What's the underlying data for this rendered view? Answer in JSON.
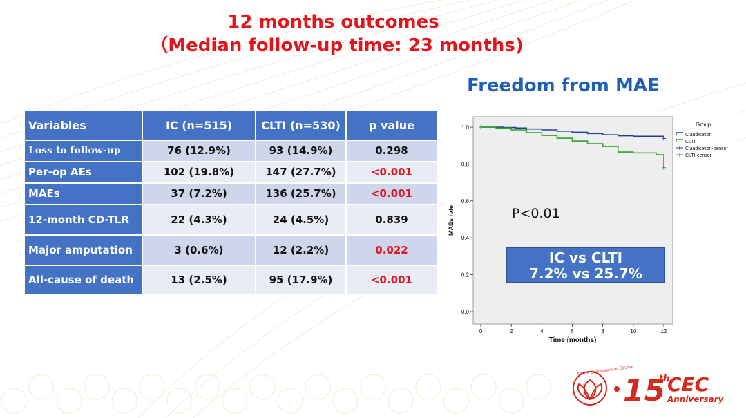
{
  "slide": {
    "title_line1": "12 months outcomes",
    "title_line2": "（Median follow-up time: 23 months)",
    "subtitle": "Freedom from MAE",
    "p_text": "P<0.01",
    "comparison_line1": "IC vs CLTI",
    "comparison_line2": "7.2% vs 25.7%",
    "colors": {
      "title_red": "#e3141c",
      "blue": "#1f5fb8",
      "table_blue": "#4472c4"
    }
  },
  "table": {
    "headers": [
      "Variables",
      "IC (n=515)",
      "CLTI (n=530)",
      "p value"
    ],
    "rows": [
      {
        "variable": "Loss to follow-up",
        "ic": "76 (12.9%)",
        "clti": "93 (14.9%)",
        "p": "0.298",
        "significant": false
      },
      {
        "variable": "Per-op AEs",
        "ic": "102 (19.8%)",
        "clti": "147 (27.7%)",
        "p": "<0.001",
        "significant": true
      },
      {
        "variable": "MAEs",
        "ic": "37 (7.2%)",
        "clti": "136 (25.7%)",
        "p": "<0.001",
        "significant": true
      },
      {
        "variable": "  12-month CD-TLR",
        "ic": "22 (4.3%)",
        "clti": "24 (4.5%)",
        "p": "0.839",
        "significant": false
      },
      {
        "variable": "  Major amputation",
        "ic": "3 (0.6%)",
        "clti": "12 (2.2%)",
        "p": "0.022",
        "significant": true
      },
      {
        "variable": "  All-cause of death",
        "ic": "13 (2.5%)",
        "clti": "95 (17.9%)",
        "p": "<0.001",
        "significant": true
      }
    ]
  },
  "chart_data": {
    "type": "line",
    "title": "",
    "xlabel": "Time (months)",
    "ylabel": "MAEs rate",
    "xlim": [
      0,
      12
    ],
    "ylim": [
      0,
      1.0
    ],
    "xticks": [
      "0",
      "2",
      "4",
      "6",
      "8",
      "10",
      "12"
    ],
    "yticks": [
      "0.0",
      "0.2",
      "0.4",
      "0.6",
      "0.8",
      "1.0"
    ],
    "legend_title": "Group",
    "legend_position": "top-right",
    "legend_entries": [
      "Claudication",
      "CLTI",
      "Claudication-censor",
      "CLTI-censor"
    ],
    "grid": false,
    "series": [
      {
        "name": "Claudication",
        "color": "#1f3fa3",
        "x": [
          0,
          1.5,
          2.3,
          3,
          4,
          5,
          6,
          7,
          8,
          9,
          10,
          12
        ],
        "y": [
          1.0,
          0.998,
          0.995,
          0.99,
          0.985,
          0.978,
          0.972,
          0.965,
          0.958,
          0.953,
          0.95,
          0.938
        ]
      },
      {
        "name": "CLTI",
        "color": "#2ca02c",
        "x": [
          0,
          1,
          2,
          3,
          4,
          5,
          6,
          7,
          8,
          9,
          10,
          11.5,
          12
        ],
        "y": [
          1.0,
          0.995,
          0.985,
          0.97,
          0.955,
          0.94,
          0.925,
          0.91,
          0.895,
          0.865,
          0.86,
          0.85,
          0.78
        ]
      }
    ]
  }
}
